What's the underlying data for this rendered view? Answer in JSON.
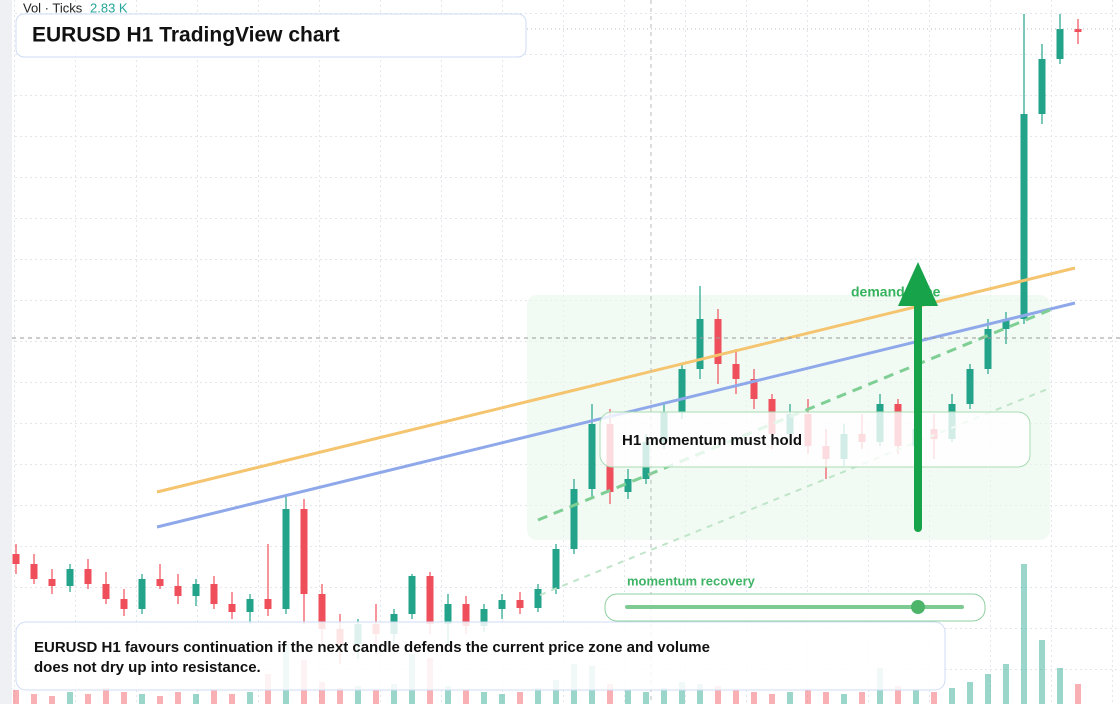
{
  "chart_data": {
    "type": "candlestick",
    "title": "EURUSD H1 TradingView chart",
    "volume_label": "Vol · Ticks",
    "volume_value": "2.83 K",
    "ylim": [
      0,
      704
    ],
    "volume_ylim": [
      0,
      704
    ],
    "up_color": "#22a38a",
    "down_color": "#ef4f5a",
    "open": [
      150,
      140,
      125,
      118,
      135,
      120,
      105,
      95,
      125,
      118,
      108,
      120,
      100,
      92,
      105,
      95,
      195,
      110,
      75,
      60,
      80,
      70,
      90,
      128,
      80,
      100,
      78,
      95,
      104,
      96,
      115,
      155,
      215,
      280,
      212,
      225,
      262,
      292,
      335,
      385,
      340,
      325,
      305,
      270,
      290,
      258,
      245,
      270,
      262,
      300,
      258,
      275,
      265,
      300,
      335,
      375,
      385,
      590,
      645,
      675
    ],
    "high": [
      160,
      150,
      135,
      140,
      145,
      132,
      115,
      130,
      140,
      130,
      125,
      128,
      112,
      110,
      160,
      208,
      205,
      120,
      90,
      85,
      100,
      95,
      130,
      132,
      110,
      108,
      100,
      110,
      112,
      120,
      160,
      225,
      300,
      295,
      235,
      270,
      300,
      340,
      418,
      395,
      355,
      335,
      310,
      300,
      305,
      275,
      280,
      290,
      310,
      305,
      285,
      290,
      310,
      340,
      385,
      392,
      690,
      660,
      690,
      685
    ],
    "low": [
      130,
      120,
      110,
      112,
      115,
      100,
      88,
      90,
      115,
      100,
      98,
      95,
      85,
      80,
      88,
      90,
      80,
      60,
      40,
      45,
      50,
      60,
      85,
      70,
      60,
      70,
      72,
      85,
      90,
      92,
      110,
      150,
      205,
      200,
      205,
      220,
      255,
      285,
      325,
      320,
      310,
      295,
      255,
      260,
      250,
      225,
      238,
      255,
      258,
      250,
      248,
      245,
      262,
      295,
      330,
      360,
      380,
      580,
      640,
      660
    ],
    "close": [
      140,
      125,
      118,
      135,
      120,
      105,
      95,
      125,
      118,
      108,
      120,
      100,
      92,
      105,
      95,
      195,
      110,
      75,
      60,
      80,
      70,
      90,
      128,
      80,
      100,
      78,
      95,
      104,
      96,
      115,
      155,
      215,
      280,
      212,
      225,
      262,
      292,
      335,
      385,
      340,
      325,
      305,
      270,
      290,
      258,
      245,
      270,
      262,
      300,
      258,
      275,
      265,
      300,
      335,
      375,
      385,
      590,
      645,
      675,
      672
    ],
    "volume": [
      14,
      10,
      8,
      12,
      10,
      16,
      12,
      10,
      8,
      12,
      10,
      14,
      10,
      12,
      30,
      60,
      44,
      22,
      16,
      18,
      14,
      20,
      50,
      46,
      18,
      14,
      12,
      10,
      12,
      16,
      24,
      40,
      38,
      20,
      14,
      12,
      16,
      22,
      20,
      18,
      14,
      12,
      10,
      12,
      14,
      12,
      10,
      12,
      36,
      18,
      14,
      12,
      16,
      22,
      30,
      40,
      140,
      64,
      36,
      20
    ],
    "annotations": {
      "demand_zone": "demand zone",
      "momentum_hold": "H1 momentum must hold",
      "momentum_recovery": "momentum recovery",
      "note": [
        "EURUSD H1 favours continuation if the next candle defends the current price zone and volume",
        "does not dry up into resistance."
      ]
    }
  }
}
